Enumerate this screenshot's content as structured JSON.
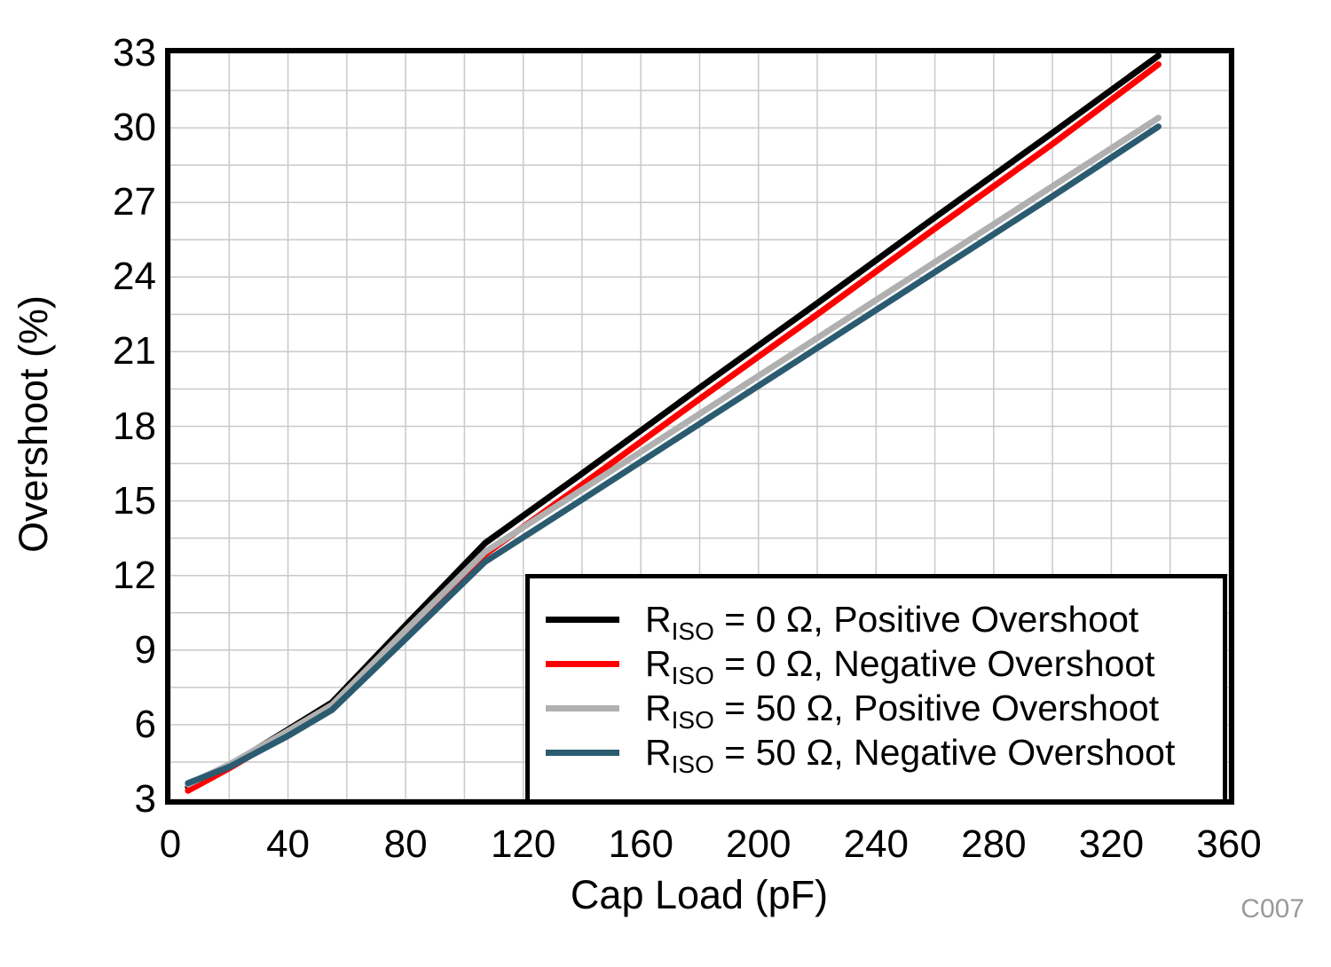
{
  "watermark": "C007",
  "colors": {
    "background": "#FFFFFF",
    "plot_border": "#000000",
    "grid": "#C9C9C9",
    "tick_text": "#000000",
    "watermark_text": "#9A9A9A"
  },
  "axes": {
    "x": {
      "label": "Cap Load (pF)",
      "min": 0,
      "max": 360,
      "ticks": [
        0,
        40,
        80,
        120,
        160,
        200,
        240,
        280,
        320,
        360
      ],
      "grid_step": 20
    },
    "y": {
      "label": "Overshoot (%)",
      "min": 3,
      "max": 33,
      "ticks": [
        3,
        6,
        9,
        12,
        15,
        18,
        21,
        24,
        27,
        30,
        33
      ],
      "grid_step": 1.5
    }
  },
  "chart_data": {
    "type": "line",
    "title": "",
    "xlabel": "Cap Load (pF)",
    "ylabel": "Overshoot (%)",
    "xlim": [
      0,
      360
    ],
    "ylim": [
      3,
      33
    ],
    "grid": true,
    "legend_position": "bottom-right",
    "x": [
      6,
      20,
      40,
      55,
      80,
      107,
      140,
      180,
      220,
      260,
      300,
      336
    ],
    "series": [
      {
        "name": "RISO = 0 Ω, Positive Overshoot",
        "legend": {
          "pre": "R",
          "sub": "ISO",
          "rest": " = 0 Ω, Positive Overshoot"
        },
        "color": "#000000",
        "values": [
          3.5,
          4.35,
          5.8,
          6.9,
          10.0,
          13.3,
          16.1,
          19.55,
          22.95,
          26.4,
          29.8,
          32.9
        ]
      },
      {
        "name": "RISO = 0 Ω, Negative Overshoot",
        "legend": {
          "pre": "R",
          "sub": "ISO",
          "rest": " = 0 Ω, Negative Overshoot"
        },
        "color": "#FF0000",
        "values": [
          3.35,
          4.25,
          5.65,
          6.75,
          9.75,
          12.85,
          15.65,
          19.1,
          22.5,
          25.95,
          29.35,
          32.55
        ]
      },
      {
        "name": "RISO = 50 Ω, Positive Overshoot",
        "legend": {
          "pre": "R",
          "sub": "ISO",
          "rest": " = 50 Ω, Positive Overshoot"
        },
        "color": "#B0B0B0",
        "values": [
          3.6,
          4.4,
          5.75,
          6.8,
          9.8,
          12.95,
          15.45,
          18.5,
          21.55,
          24.6,
          27.65,
          30.4
        ]
      },
      {
        "name": "RISO = 50 Ω, Negative Overshoot",
        "legend": {
          "pre": "R",
          "sub": "ISO",
          "rest": " = 50 Ω, Negative Overshoot"
        },
        "color": "#2B5B70",
        "values": [
          3.65,
          4.3,
          5.55,
          6.6,
          9.45,
          12.55,
          15.05,
          18.1,
          21.15,
          24.2,
          27.25,
          30.05
        ]
      }
    ]
  }
}
